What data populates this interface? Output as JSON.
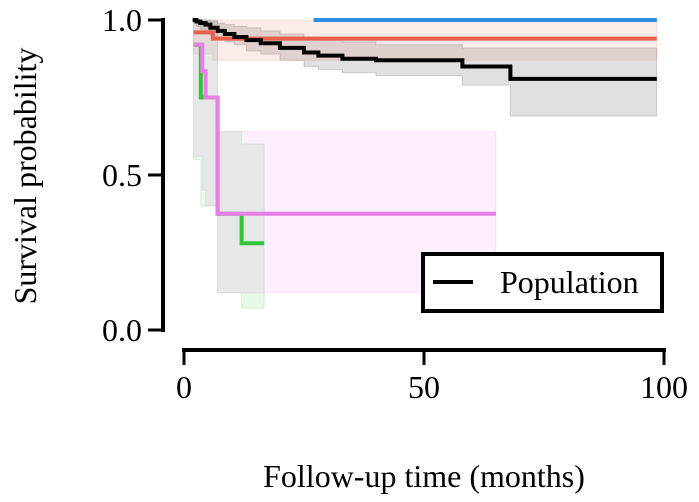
{
  "chart_data": {
    "type": "line",
    "subtype": "kaplan-meier step",
    "title": "",
    "xlabel": "Follow-up time (months)",
    "ylabel": "Survival probability",
    "xlim": [
      0,
      100
    ],
    "ylim": [
      0,
      1
    ],
    "xticks": [
      0,
      50,
      100
    ],
    "xtick_labels": [
      "0",
      "50",
      "100"
    ],
    "yticks": [
      0,
      0.5,
      1
    ],
    "ytick_labels": [
      "0.0",
      "0.5",
      "1.0"
    ],
    "grid": false,
    "legend": {
      "position": "bottom-right",
      "entries": [
        "Population"
      ]
    },
    "series": [
      {
        "name": "Population",
        "color": "#000000",
        "x": [
          1.8,
          2.6,
          3.4,
          4.5,
          5.5,
          7,
          8.5,
          10.5,
          13,
          16,
          20,
          25,
          28,
          33,
          40,
          58,
          68,
          98.5
        ],
        "y": [
          1.0,
          0.995,
          0.99,
          0.985,
          0.975,
          0.965,
          0.955,
          0.945,
          0.935,
          0.925,
          0.91,
          0.895,
          0.885,
          0.875,
          0.87,
          0.85,
          0.81,
          0.81
        ],
        "ci_lower": [
          1.0,
          0.98,
          0.97,
          0.96,
          0.95,
          0.94,
          0.93,
          0.92,
          0.9,
          0.89,
          0.87,
          0.85,
          0.84,
          0.83,
          0.82,
          0.79,
          0.69,
          0.69
        ],
        "ci_upper": [
          1.0,
          1.0,
          1.0,
          1.0,
          0.995,
          0.99,
          0.985,
          0.98,
          0.975,
          0.965,
          0.955,
          0.945,
          0.935,
          0.93,
          0.92,
          0.91,
          0.91,
          0.91
        ]
      },
      {
        "color": "#2E8FE6",
        "x": [
          27,
          98.5
        ],
        "y": [
          1.0,
          1.0
        ],
        "ci_lower": [
          1.0,
          1.0
        ],
        "ci_upper": [
          1.0,
          1.0
        ]
      },
      {
        "color": "#E8604A",
        "x": [
          2,
          6,
          98.5
        ],
        "y": [
          0.96,
          0.94,
          0.94
        ],
        "ci_lower": [
          0.89,
          0.87,
          0.87
        ],
        "ci_upper": [
          1.0,
          1.0,
          1.0
        ]
      },
      {
        "color": "#33C33A",
        "x": [
          2,
          3.5,
          4.5,
          7,
          12,
          16.7
        ],
        "y": [
          0.92,
          0.75,
          0.75,
          0.375,
          0.28,
          0.28
        ],
        "ci_lower": [
          0.55,
          0.4,
          0.4,
          0.12,
          0.07,
          0.07
        ],
        "ci_upper": [
          1.0,
          1.0,
          1.0,
          0.64,
          0.6,
          0.6
        ]
      },
      {
        "color": "#E77FE7",
        "x": [
          2,
          3.8,
          4.5,
          7,
          65
        ],
        "y": [
          0.92,
          0.835,
          0.75,
          0.375,
          0.375
        ],
        "ci_lower": [
          0.56,
          0.45,
          0.4,
          0.12,
          0.12
        ],
        "ci_upper": [
          1.0,
          1.0,
          1.0,
          0.64,
          0.64
        ]
      }
    ]
  }
}
